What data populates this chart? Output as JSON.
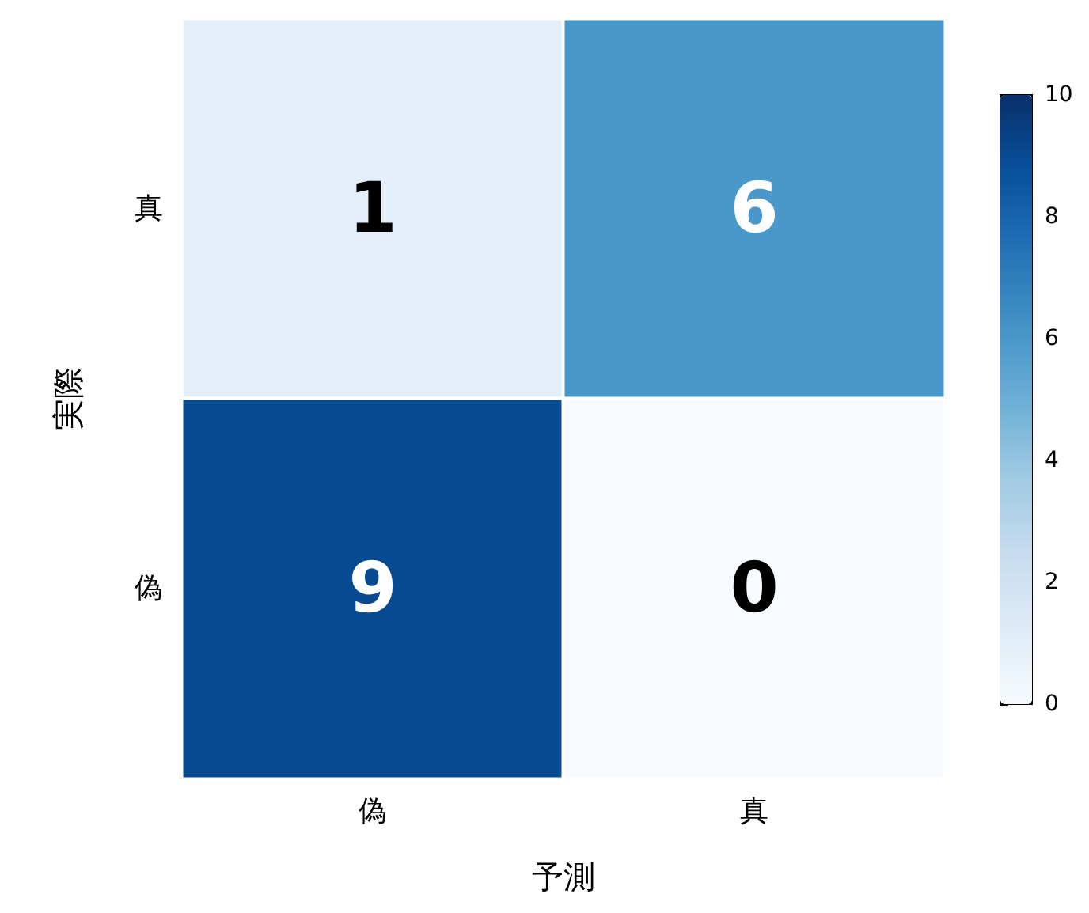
{
  "chart_data": {
    "type": "heatmap",
    "xlabel": "予測",
    "ylabel": "実際",
    "categories": [
      "偽",
      "真"
    ],
    "y_categories": [
      "真",
      "偽"
    ],
    "cells": [
      [
        1,
        6
      ],
      [
        9,
        0
      ]
    ],
    "data_labels": true,
    "clim": [
      0,
      10
    ],
    "cticks": [
      0,
      2,
      4,
      6,
      8,
      10
    ]
  }
}
